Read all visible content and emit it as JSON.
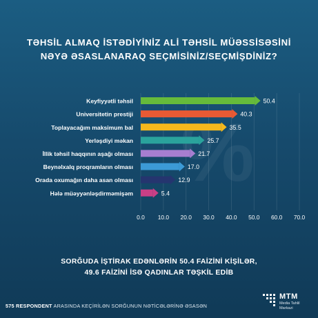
{
  "title_line1": "TƏHSİL ALMAQ İSTƏDİYİNİZ ALİ TƏHSİL MÜƏSSİSƏSİNİ",
  "title_line2": "NƏYƏ ƏSASLANARAQ SEÇMİSİNİZ/SEÇMİŞDİNİZ?",
  "footnote_line1": "SORĞUDA İŞTİRAK EDƏNLƏRİN 50.4 FAİZİNİ KİŞİLƏR,",
  "footnote_line2": "49.6 FAİZİNİ İSƏ QADINLAR TƏŞKİL EDİB",
  "footer": {
    "respondents": "575 RESPONDENT",
    "rest": "ARASINDA KEÇİRİLƏN SORĞUNUN NƏTİCƏLƏRİNƏ ƏSASƏN"
  },
  "logo": {
    "name": "MTM",
    "sub_line1": "Media Tahlil",
    "sub_line2": "Markazi"
  },
  "watermark": "%",
  "chart_data": {
    "type": "bar",
    "orientation": "horizontal",
    "categories": [
      "Keyfiyyətli təhsil",
      "Universitetin prestiji",
      "Toplayacağım maksimum bal",
      "Yerləşdiyi məkan",
      "İllik təhsil haqqının aşağı olması",
      "Beynəlxalq proqramların olması",
      "Orada oxumağın daha asan olması",
      "Hələ müəyyənləşdirməmişəm"
    ],
    "values": [
      50.4,
      40.3,
      35.5,
      25.7,
      21.7,
      17.0,
      12.9,
      5.4
    ],
    "value_labels": [
      "50.4",
      "40.3",
      "35.5",
      "25.7",
      "21.7",
      "17.0",
      "12.9",
      "5.4"
    ],
    "colors": [
      "#66bb3b",
      "#e85a34",
      "#f5b81c",
      "#2aa39c",
      "#a77ed0",
      "#3c9ad6",
      "#25356f",
      "#c93f86"
    ],
    "xlim": [
      0,
      70
    ],
    "xticks": [
      "0.0",
      "10.0",
      "20.0",
      "30.0",
      "40.0",
      "50.0",
      "60.0",
      "70.0"
    ],
    "grid": true,
    "legend": "none"
  }
}
